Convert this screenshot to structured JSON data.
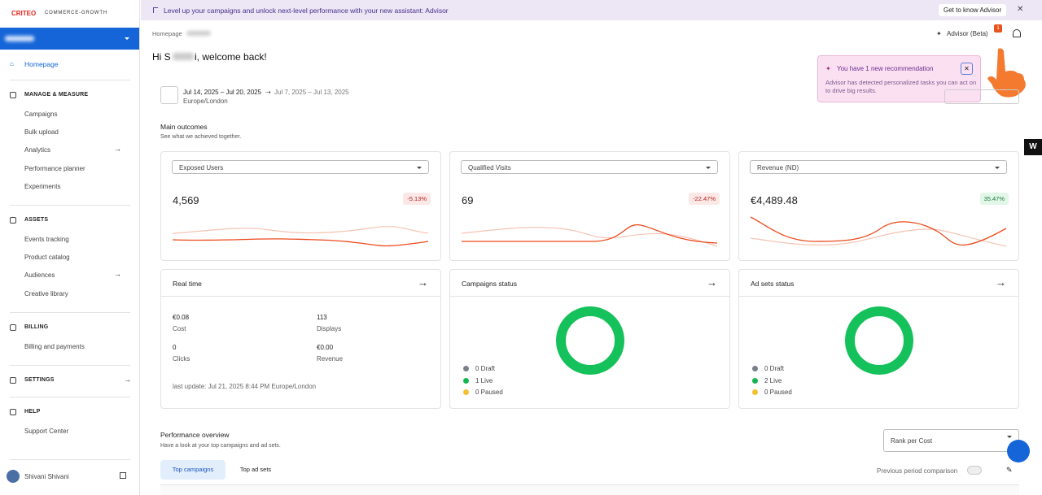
{
  "logo": {
    "brand": "CRITEO",
    "product": "COMMERCE-GROWTH"
  },
  "banner": {
    "text": "Level up your campaigns and unlock next-level performance with your new assistant: Advisor",
    "button": "Get to know Advisor"
  },
  "sidebar": {
    "homepage": "Homepage",
    "sections": [
      {
        "title": "MANAGE & MEASURE",
        "items": [
          "Campaigns",
          "Bulk upload",
          "Analytics",
          "Performance planner",
          "Experiments"
        ]
      },
      {
        "title": "ASSETS",
        "items": [
          "Events tracking",
          "Product catalog",
          "Audiences",
          "Creative library"
        ]
      },
      {
        "title": "BILLING",
        "items": [
          "Billing and payments"
        ]
      },
      {
        "title": "SETTINGS",
        "items": []
      },
      {
        "title": "HELP",
        "items": [
          "Support Center"
        ]
      }
    ],
    "user": "Shivani Shivani"
  },
  "header": {
    "breadcrumb": "Homepage",
    "greeting_start": "Hi S",
    "greeting_end": "i, welcome back!",
    "advisor": "Advisor (Beta)",
    "badge": "1"
  },
  "popup": {
    "title": "You have 1 new recommendation",
    "body": "Advisor has detected personalized tasks you can act on to drive big results."
  },
  "date_range": {
    "current": "Jul 14, 2025 – Jul 20, 2025",
    "compare": "Jul 7, 2025 – Jul 13, 2025",
    "timezone": "Europe/London"
  },
  "outcomes": {
    "title": "Main outcomes",
    "subtitle": "See what we achieved together.",
    "cards": [
      {
        "metric": "Exposed Users",
        "value": "4,569",
        "change": "-5.13%"
      },
      {
        "metric": "Qualified Visits",
        "value": "69",
        "change": "-22.47%"
      },
      {
        "metric": "Revenue (ND)",
        "value": "€4,489.48",
        "change": "35.47%"
      }
    ]
  },
  "realtime": {
    "title": "Real time",
    "stats": [
      {
        "value": "€0.08",
        "label": "Cost"
      },
      {
        "value": "113",
        "label": "Displays"
      },
      {
        "value": "0",
        "label": "Clicks"
      },
      {
        "value": "€0.00",
        "label": "Revenue"
      }
    ],
    "last_update": "last update: Jul 21, 2025 8:44 PM Europe/London"
  },
  "status_cards": [
    {
      "title": "Campaigns status",
      "legend": [
        "0 Draft",
        "1 Live",
        "0 Paused"
      ]
    },
    {
      "title": "Ad sets status",
      "legend": [
        "0 Draft",
        "2 Live",
        "0 Paused"
      ]
    }
  ],
  "performance": {
    "title": "Performance overview",
    "subtitle": "Have a look at your top campaigns and ad sets.",
    "rank": "Rank per Cost",
    "tabs": [
      "Top campaigns",
      "Top ad sets"
    ],
    "comparison": "Previous period comparison"
  }
}
